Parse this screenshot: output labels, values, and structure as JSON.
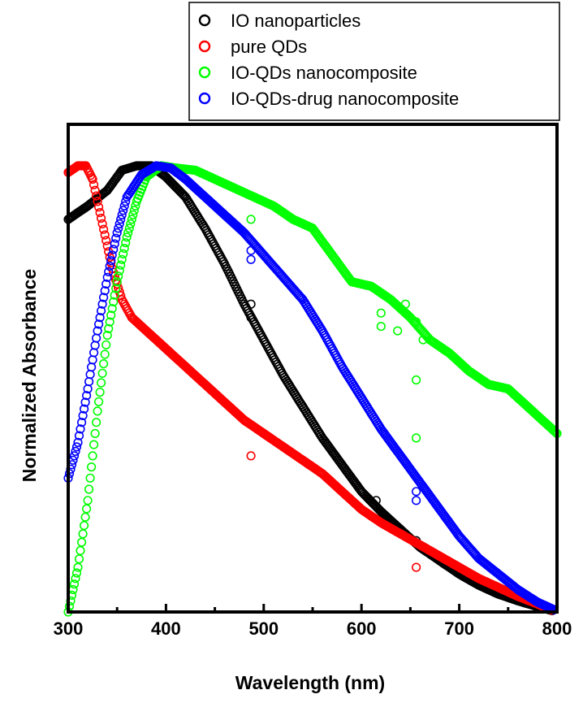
{
  "chart_data": {
    "type": "scatter",
    "title": "",
    "xlabel": "Wavelength (nm)",
    "ylabel": "Normalized Absorbance",
    "xlim": [
      300,
      800
    ],
    "ylim": [
      0,
      1
    ],
    "x_ticks": [
      "300",
      "400",
      "500",
      "600",
      "700",
      "800"
    ],
    "y_ticks": [],
    "grid": false,
    "legend_position": "top-right, above plot",
    "series": [
      {
        "name": "IO nanoparticles",
        "color": "#000000",
        "marker": "open-circle",
        "points": [
          [
            300,
            0.88
          ],
          [
            320,
            0.91
          ],
          [
            340,
            0.945
          ],
          [
            355,
            0.99
          ],
          [
            370,
            1.0
          ],
          [
            385,
            1.0
          ],
          [
            400,
            0.975
          ],
          [
            420,
            0.93
          ],
          [
            440,
            0.86
          ],
          [
            460,
            0.78
          ],
          [
            480,
            0.69
          ],
          [
            500,
            0.61
          ],
          [
            520,
            0.53
          ],
          [
            540,
            0.46
          ],
          [
            560,
            0.39
          ],
          [
            580,
            0.33
          ],
          [
            600,
            0.27
          ],
          [
            620,
            0.225
          ],
          [
            640,
            0.185
          ],
          [
            660,
            0.145
          ],
          [
            680,
            0.115
          ],
          [
            700,
            0.085
          ],
          [
            720,
            0.06
          ],
          [
            740,
            0.04
          ],
          [
            760,
            0.025
          ],
          [
            780,
            0.012
          ],
          [
            795,
            0.003
          ]
        ],
        "outliers": [
          [
            487,
            0.69
          ],
          [
            487,
            0.66
          ],
          [
            615,
            0.25
          ],
          [
            656,
            0.16
          ]
        ]
      },
      {
        "name": "pure QDs",
        "color": "#ff0000",
        "marker": "open-circle",
        "points": [
          [
            300,
            0.985
          ],
          [
            310,
            1.0
          ],
          [
            318,
            1.0
          ],
          [
            325,
            0.97
          ],
          [
            335,
            0.87
          ],
          [
            345,
            0.77
          ],
          [
            355,
            0.7
          ],
          [
            365,
            0.66
          ],
          [
            380,
            0.63
          ],
          [
            400,
            0.59
          ],
          [
            420,
            0.55
          ],
          [
            440,
            0.51
          ],
          [
            460,
            0.47
          ],
          [
            480,
            0.43
          ],
          [
            500,
            0.4
          ],
          [
            520,
            0.37
          ],
          [
            540,
            0.34
          ],
          [
            560,
            0.31
          ],
          [
            580,
            0.27
          ],
          [
            600,
            0.23
          ],
          [
            620,
            0.2
          ],
          [
            640,
            0.175
          ],
          [
            660,
            0.15
          ],
          [
            680,
            0.125
          ],
          [
            700,
            0.1
          ],
          [
            720,
            0.075
          ],
          [
            740,
            0.055
          ],
          [
            760,
            0.035
          ],
          [
            780,
            0.018
          ],
          [
            795,
            0.004
          ]
        ],
        "outliers": [
          [
            487,
            0.35
          ],
          [
            656,
            0.1
          ]
        ]
      },
      {
        "name": "IO-QDs nanocomposite",
        "color": "#00ff00",
        "marker": "open-circle",
        "points": [
          [
            300,
            0.0
          ],
          [
            310,
            0.1
          ],
          [
            320,
            0.25
          ],
          [
            330,
            0.45
          ],
          [
            340,
            0.62
          ],
          [
            350,
            0.74
          ],
          [
            360,
            0.84
          ],
          [
            370,
            0.92
          ],
          [
            380,
            0.975
          ],
          [
            395,
            1.0
          ],
          [
            410,
            0.995
          ],
          [
            430,
            0.99
          ],
          [
            450,
            0.97
          ],
          [
            470,
            0.95
          ],
          [
            490,
            0.93
          ],
          [
            510,
            0.91
          ],
          [
            530,
            0.88
          ],
          [
            550,
            0.86
          ],
          [
            570,
            0.8
          ],
          [
            590,
            0.74
          ],
          [
            610,
            0.73
          ],
          [
            630,
            0.7
          ],
          [
            650,
            0.66
          ],
          [
            670,
            0.61
          ],
          [
            690,
            0.58
          ],
          [
            710,
            0.54
          ],
          [
            730,
            0.51
          ],
          [
            750,
            0.5
          ],
          [
            770,
            0.46
          ],
          [
            790,
            0.42
          ],
          [
            800,
            0.4
          ]
        ],
        "outliers": [
          [
            487,
            0.88
          ],
          [
            620,
            0.67
          ],
          [
            620,
            0.64
          ],
          [
            637,
            0.63
          ],
          [
            645,
            0.69
          ],
          [
            656,
            0.65
          ],
          [
            656,
            0.52
          ],
          [
            656,
            0.39
          ],
          [
            663,
            0.61
          ]
        ]
      },
      {
        "name": "IO-QDs-drug nanocomposite",
        "color": "#0000ff",
        "marker": "open-circle",
        "points": [
          [
            300,
            0.3
          ],
          [
            310,
            0.38
          ],
          [
            320,
            0.5
          ],
          [
            330,
            0.63
          ],
          [
            340,
            0.75
          ],
          [
            350,
            0.85
          ],
          [
            360,
            0.93
          ],
          [
            375,
            0.98
          ],
          [
            390,
            1.0
          ],
          [
            405,
            0.995
          ],
          [
            420,
            0.97
          ],
          [
            440,
            0.93
          ],
          [
            460,
            0.89
          ],
          [
            480,
            0.85
          ],
          [
            500,
            0.8
          ],
          [
            520,
            0.75
          ],
          [
            540,
            0.7
          ],
          [
            560,
            0.63
          ],
          [
            580,
            0.55
          ],
          [
            600,
            0.48
          ],
          [
            620,
            0.41
          ],
          [
            640,
            0.35
          ],
          [
            660,
            0.29
          ],
          [
            680,
            0.23
          ],
          [
            700,
            0.17
          ],
          [
            720,
            0.12
          ],
          [
            740,
            0.085
          ],
          [
            760,
            0.05
          ],
          [
            780,
            0.022
          ],
          [
            797,
            0.005
          ]
        ],
        "outliers": [
          [
            487,
            0.81
          ],
          [
            487,
            0.79
          ],
          [
            656,
            0.27
          ],
          [
            656,
            0.25
          ]
        ]
      }
    ]
  }
}
